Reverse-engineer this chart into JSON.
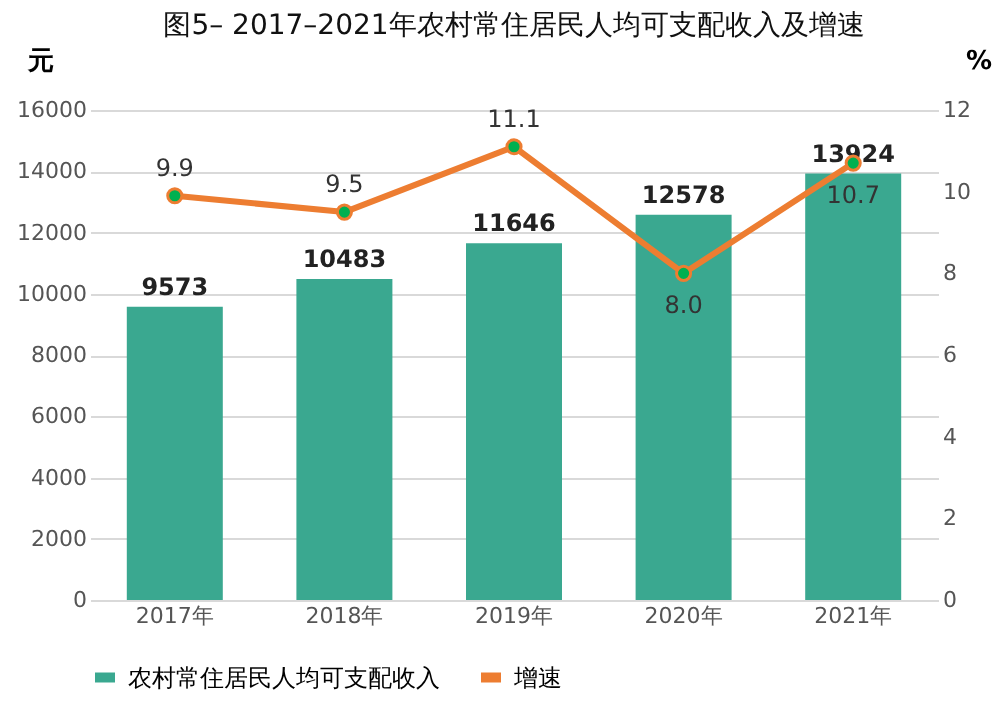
{
  "chart_data": {
    "type": "bar",
    "title": "图5– 2017–2021年农村常住居民人均可支配收入及增速",
    "categories": [
      "2017年",
      "2018年",
      "2019年",
      "2020年",
      "2021年"
    ],
    "ylabel": "元",
    "y2label": "%",
    "series": [
      {
        "name": "农村常住居民人均可支配收入",
        "color": "#3aa890",
        "values": [
          9573,
          10483,
          11646,
          12578,
          13924
        ]
      },
      {
        "name": "增速",
        "type": "line",
        "axis": "y2",
        "color": "#ed7d31",
        "marker": "circle",
        "values": [
          9.9,
          9.5,
          11.1,
          8.0,
          10.7
        ],
        "value_labels": [
          "9.9",
          "9.5",
          "11.1",
          "8.0",
          "10.7"
        ]
      }
    ],
    "ylim": [
      0,
      16000
    ],
    "yticks": [
      0,
      2000,
      4000,
      6000,
      8000,
      10000,
      12000,
      14000,
      16000
    ],
    "y2lim": [
      0,
      12
    ],
    "y2ticks": [
      0,
      2,
      4,
      6,
      8,
      10,
      12
    ],
    "data_labels": true,
    "grid": "y",
    "legend": "bottom"
  }
}
